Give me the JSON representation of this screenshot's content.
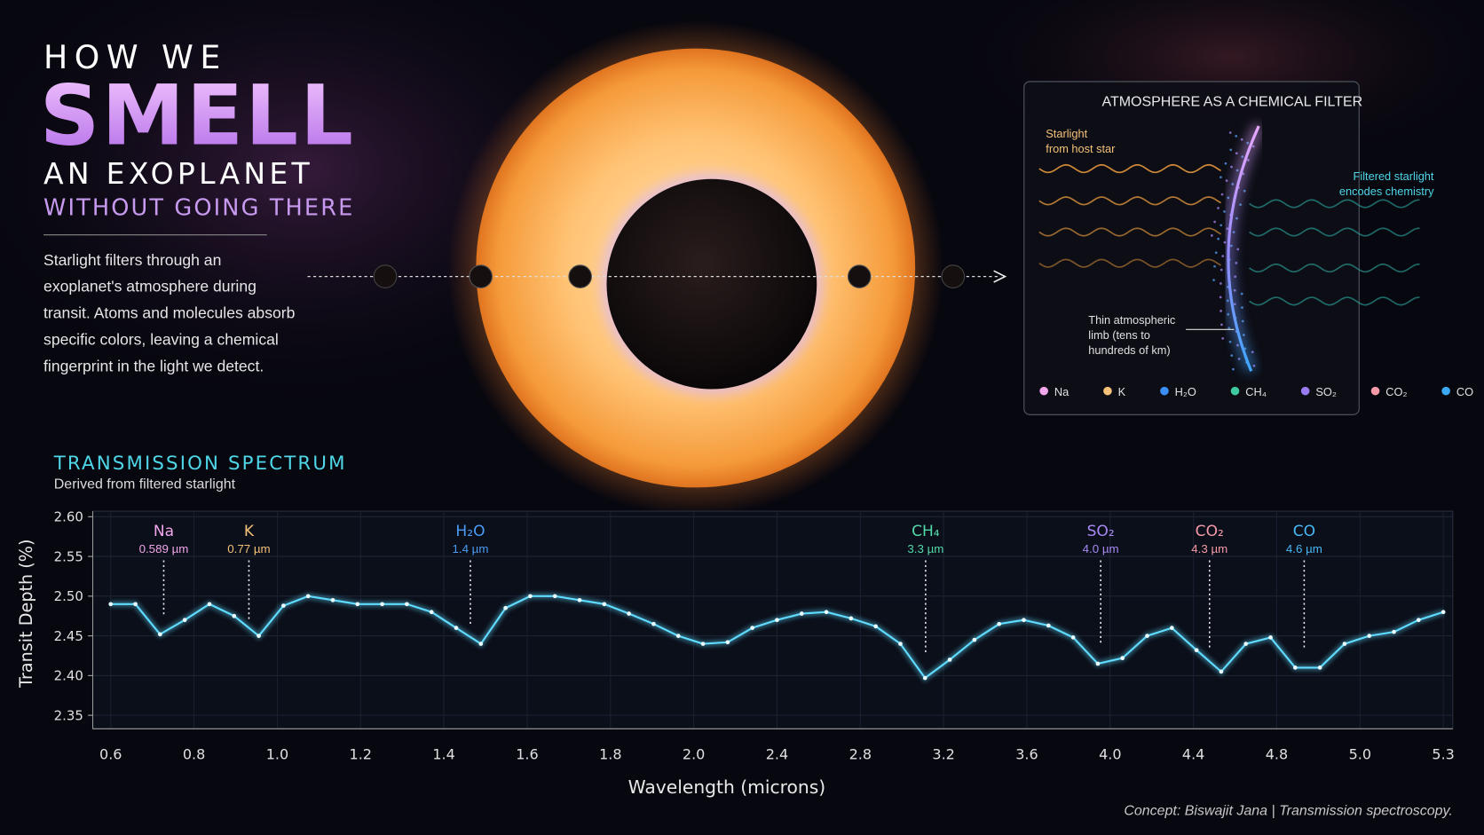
{
  "header": {
    "line1": "HOW WE",
    "line2": "SMELL",
    "line3": "AN EXOPLANET",
    "line4": "WITHOUT GOING THERE",
    "description": [
      "Starlight filters through an",
      "exoplanet's atmosphere during",
      "transit. Atoms and molecules absorb",
      "specific colors, leaving a chemical",
      "fingerprint in the light we detect."
    ]
  },
  "inset": {
    "title": "ATMOSPHERE AS A CHEMICAL FILTER",
    "starlight": [
      "Starlight",
      "from host star"
    ],
    "filtered": [
      "Filtered starlight",
      "encodes chemistry"
    ],
    "limb": [
      "Thin atmospheric",
      "limb (tens to",
      "hundreds of km)"
    ],
    "legend": [
      {
        "name": "Na",
        "color": "#f2a6ec"
      },
      {
        "name": "K",
        "color": "#f5c27a"
      },
      {
        "name": "H₂O",
        "color": "#3b8ef5"
      },
      {
        "name": "CH₄",
        "color": "#3fc9a0"
      },
      {
        "name": "SO₂",
        "color": "#9a7cf2"
      },
      {
        "name": "CO₂",
        "color": "#f59aa8"
      },
      {
        "name": "CO",
        "color": "#3aa8f5"
      }
    ]
  },
  "chart_data": {
    "type": "line",
    "title": "TRANSMISSION SPECTRUM",
    "subtitle": "Derived from filtered starlight",
    "xlabel": "Wavelength (microns)",
    "ylabel": "Transit Depth (%)",
    "xtick_labels": [
      "0.6",
      "0.8",
      "1.0",
      "1.2",
      "1.4",
      "1.6",
      "1.8",
      "2.0",
      "2.4",
      "2.8",
      "3.2",
      "3.6",
      "4.0",
      "4.4",
      "4.8",
      "5.0",
      "5.3"
    ],
    "ylim": [
      2.333,
      2.607
    ],
    "yticks": [
      2.35,
      {
        "value": 2.4,
        "label": "2.40"
      },
      2.45,
      {
        "value": 2.5,
        "label": "2.50"
      },
      2.55,
      {
        "value": 2.6,
        "label": "2.60"
      }
    ],
    "grid": true,
    "color": "#5fdcff",
    "values": [
      2.49,
      2.49,
      2.452,
      2.47,
      2.49,
      2.475,
      2.45,
      2.488,
      2.5,
      2.495,
      2.49,
      2.49,
      2.49,
      2.48,
      2.46,
      2.44,
      2.485,
      2.5,
      2.5,
      2.495,
      2.49,
      2.478,
      2.465,
      2.45,
      2.44,
      2.442,
      2.46,
      2.47,
      2.478,
      2.48,
      2.472,
      2.462,
      2.44,
      2.397,
      2.42,
      2.445,
      2.465,
      2.47,
      2.463,
      2.448,
      2.415,
      2.422,
      2.45,
      2.46,
      2.432,
      2.405,
      2.44,
      2.448,
      2.41,
      2.41,
      2.44,
      2.45,
      2.455,
      2.47,
      2.48
    ],
    "annotations": [
      {
        "label": "Na",
        "note": "0.589 µm",
        "color": "#f2a6ec"
      },
      {
        "label": "K",
        "note": "0.77 µm",
        "color": "#f5c27a"
      },
      {
        "label": "H₂O",
        "note": "1.4 µm",
        "color": "#4a9cf7"
      },
      {
        "label": "CH₄",
        "note": "3.3 µm",
        "color": "#52d9a8"
      },
      {
        "label": "SO₂",
        "note": "4.0 µm",
        "color": "#a98af5"
      },
      {
        "label": "CO₂",
        "note": "4.3 µm",
        "color": "#f59aa8"
      },
      {
        "label": "CO",
        "note": "4.6 µm",
        "color": "#4ab8f7"
      }
    ]
  },
  "credit": "Concept: Biswajit Jana | Transmission spectroscopy."
}
